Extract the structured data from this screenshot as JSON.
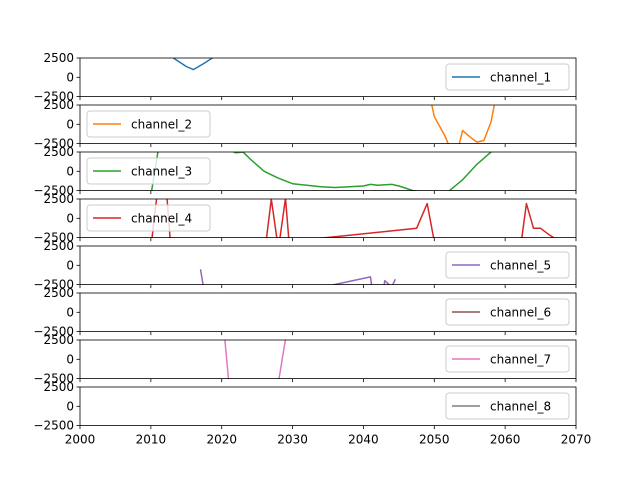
{
  "chart_data": {
    "type": "line",
    "xlim": [
      2000,
      2070
    ],
    "ylim": [
      -2500,
      2500
    ],
    "x_ticks": [
      "2000",
      "2010",
      "2020",
      "2030",
      "2040",
      "2050",
      "2060",
      "2070"
    ],
    "y_ticks": [
      "2500",
      "0",
      "−2500"
    ],
    "grid": false,
    "series": [
      {
        "name": "channel_1",
        "color": "#1f77b4",
        "legend": "right",
        "points": [
          [
            2010,
            5200
          ],
          [
            2013,
            2600
          ],
          [
            2015,
            1400
          ],
          [
            2016,
            1000
          ],
          [
            2017.5,
            1800
          ],
          [
            2019,
            2700
          ],
          [
            2021,
            3800
          ]
        ]
      },
      {
        "name": "channel_2",
        "color": "#ff7f0e",
        "legend": "left",
        "points": [
          [
            2049.5,
            3200
          ],
          [
            2050,
            1000
          ],
          [
            2051.5,
            -1500
          ],
          [
            2052,
            -2600
          ],
          [
            2053,
            -4500
          ],
          [
            2054,
            -800
          ],
          [
            2055,
            -1600
          ],
          [
            2056,
            -2300
          ],
          [
            2057,
            -2100
          ],
          [
            2058,
            300
          ],
          [
            2058.5,
            2600
          ],
          [
            2059,
            5000
          ]
        ]
      },
      {
        "name": "channel_3",
        "color": "#2ca02c",
        "legend": "left",
        "points": [
          [
            2009.5,
            -6000
          ],
          [
            2011,
            2500
          ],
          [
            2012,
            6000
          ],
          [
            2022,
            2400
          ],
          [
            2023,
            2500
          ],
          [
            2024,
            1600
          ],
          [
            2026,
            0
          ],
          [
            2028,
            -900
          ],
          [
            2030,
            -1600
          ],
          [
            2032,
            -1800
          ],
          [
            2034,
            -2000
          ],
          [
            2036,
            -2100
          ],
          [
            2038,
            -2000
          ],
          [
            2040,
            -1900
          ],
          [
            2041,
            -1700
          ],
          [
            2042,
            -1800
          ],
          [
            2044,
            -1700
          ],
          [
            2045,
            -1900
          ],
          [
            2047,
            -2500
          ],
          [
            2050,
            -2800
          ],
          [
            2051,
            -2900
          ],
          [
            2052,
            -2600
          ],
          [
            2054,
            -1100
          ],
          [
            2056,
            900
          ],
          [
            2058,
            2500
          ],
          [
            2059,
            3500
          ]
        ]
      },
      {
        "name": "channel_4",
        "color": "#d62728",
        "legend": "left",
        "points": [
          [
            2010,
            -3800
          ],
          [
            2011,
            4000
          ],
          [
            2012,
            6000
          ],
          [
            2013,
            -6000
          ],
          [
            2026,
            -5000
          ],
          [
            2027,
            2500
          ],
          [
            2028,
            -4000
          ],
          [
            2029,
            2600
          ],
          [
            2029.5,
            -3000
          ],
          [
            2047.5,
            -1300
          ],
          [
            2049,
            1900
          ],
          [
            2050,
            -3000
          ],
          [
            2062,
            -5000
          ],
          [
            2063,
            1900
          ],
          [
            2064,
            -1300
          ],
          [
            2065,
            -1300
          ],
          [
            2066,
            -2000
          ],
          [
            2067,
            -2600
          ]
        ]
      },
      {
        "name": "channel_5",
        "color": "#9467bd",
        "legend": "right",
        "points": [
          [
            2017,
            -500
          ],
          [
            2018,
            -6000
          ],
          [
            2041,
            -1500
          ],
          [
            2041.5,
            -5000
          ],
          [
            2042.5,
            -6000
          ],
          [
            2043,
            -2000
          ],
          [
            2044,
            -2800
          ],
          [
            2044.5,
            -1800
          ]
        ]
      },
      {
        "name": "channel_6",
        "color": "#8c564b",
        "legend": "right",
        "points": []
      },
      {
        "name": "channel_7",
        "color": "#e377c2",
        "legend": "right",
        "points": [
          [
            2020,
            7000
          ],
          [
            2021,
            -3000
          ],
          [
            2028,
            -3000
          ],
          [
            2029,
            2600
          ]
        ]
      },
      {
        "name": "channel_8",
        "color": "#7f7f7f",
        "legend": "right",
        "points": []
      }
    ]
  }
}
